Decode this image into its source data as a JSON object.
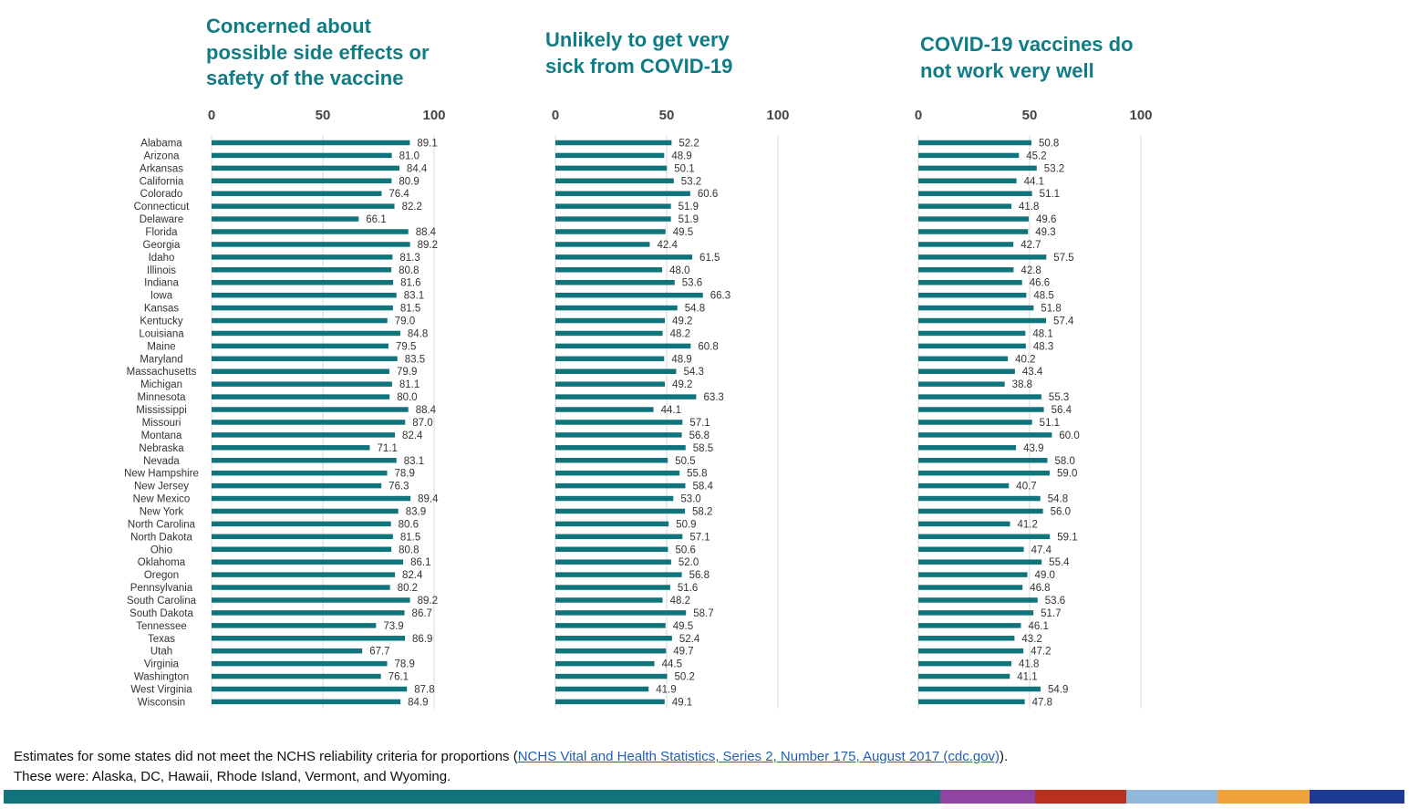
{
  "colors": {
    "title": "#0f7c86",
    "bar": "#10747d",
    "grid": "#d9d9d9",
    "strip": [
      "#10747d",
      "#8e44a0",
      "#b8311f",
      "#8fb8da",
      "#f0a33a",
      "#1d3a96"
    ]
  },
  "chart_data": [
    {
      "type": "bar",
      "orientation": "horizontal",
      "title": "Concerned about\npossible side effects or\nsafety of the vaccine",
      "xlim": [
        0,
        100
      ],
      "ticks": [
        "0",
        "50",
        "100"
      ],
      "categories": [
        "Alabama",
        "Arizona",
        "Arkansas",
        "California",
        "Colorado",
        "Connecticut",
        "Delaware",
        "Florida",
        "Georgia",
        "Idaho",
        "Illinois",
        "Indiana",
        "Iowa",
        "Kansas",
        "Kentucky",
        "Louisiana",
        "Maine",
        "Maryland",
        "Massachusetts",
        "Michigan",
        "Minnesota",
        "Mississippi",
        "Missouri",
        "Montana",
        "Nebraska",
        "Nevada",
        "New Hampshire",
        "New Jersey",
        "New Mexico",
        "New York",
        "North Carolina",
        "North Dakota",
        "Ohio",
        "Oklahoma",
        "Oregon",
        "Pennsylvania",
        "South Carolina",
        "South Dakota",
        "Tennessee",
        "Texas",
        "Utah",
        "Virginia",
        "Washington",
        "West Virginia",
        "Wisconsin"
      ],
      "values": [
        89.1,
        81.0,
        84.4,
        80.9,
        76.4,
        82.2,
        66.1,
        88.4,
        89.2,
        81.3,
        80.8,
        81.6,
        83.1,
        81.5,
        79.0,
        84.8,
        79.5,
        83.5,
        79.9,
        81.1,
        80.0,
        88.4,
        87.0,
        82.4,
        71.1,
        83.1,
        78.9,
        76.3,
        89.4,
        83.9,
        80.6,
        81.5,
        80.8,
        86.1,
        82.4,
        80.2,
        89.2,
        86.7,
        73.9,
        86.9,
        67.7,
        78.9,
        76.1,
        87.8,
        84.9
      ],
      "labels": [
        "89.1",
        "81.0",
        "84.4",
        "80.9",
        "76.4",
        "82.2",
        "66.1",
        "88.4",
        "89.2",
        "81.3",
        "80.8",
        "81.6",
        "83.1",
        "81.5",
        "79.0",
        "84.8",
        "79.5",
        "83.5",
        "79.9",
        "81.1",
        "80.0",
        "88.4",
        "87.0",
        "82.4",
        "71.1",
        "83.1",
        "78.9",
        "76.3",
        "89.4",
        "83.9",
        "80.6",
        "81.5",
        "80.8",
        "86.1",
        "82.4",
        "80.2",
        "89.2",
        "86.7",
        "73.9",
        "86.9",
        "67.7",
        "78.9",
        "76.1",
        "87.8",
        "84.9"
      ]
    },
    {
      "type": "bar",
      "orientation": "horizontal",
      "title": "Unlikely to get very\nsick from COVID-19",
      "xlim": [
        0,
        100
      ],
      "ticks": [
        "0",
        "50",
        "100"
      ],
      "categories": [
        "Alabama",
        "Arizona",
        "Arkansas",
        "California",
        "Colorado",
        "Connecticut",
        "Delaware",
        "Florida",
        "Georgia",
        "Idaho",
        "Illinois",
        "Indiana",
        "Iowa",
        "Kansas",
        "Kentucky",
        "Louisiana",
        "Maine",
        "Maryland",
        "Massachusetts",
        "Michigan",
        "Minnesota",
        "Mississippi",
        "Missouri",
        "Montana",
        "Nebraska",
        "Nevada",
        "New Hampshire",
        "New Jersey",
        "New Mexico",
        "New York",
        "North Carolina",
        "North Dakota",
        "Ohio",
        "Oklahoma",
        "Oregon",
        "Pennsylvania",
        "South Carolina",
        "South Dakota",
        "Tennessee",
        "Texas",
        "Utah",
        "Virginia",
        "Washington",
        "West Virginia",
        "Wisconsin"
      ],
      "values": [
        52.2,
        48.9,
        50.1,
        53.2,
        60.6,
        51.9,
        51.9,
        49.5,
        42.4,
        61.5,
        48.0,
        53.6,
        66.3,
        54.8,
        49.2,
        48.2,
        60.8,
        48.9,
        54.3,
        49.2,
        63.3,
        44.1,
        57.1,
        56.8,
        58.5,
        50.5,
        55.8,
        58.4,
        53.0,
        58.2,
        50.9,
        57.1,
        50.6,
        52.0,
        56.8,
        51.6,
        48.2,
        58.7,
        49.5,
        52.4,
        49.7,
        44.5,
        50.2,
        41.9,
        49.1
      ],
      "labels": [
        "52.2",
        "48.9",
        "50.1",
        "53.2",
        "60.6",
        "51.9",
        "51.9",
        "49.5",
        "42.4",
        "61.5",
        "48.0",
        "53.6",
        "66.3",
        "54.8",
        "49.2",
        "48.2",
        "60.8",
        "48.9",
        "54.3",
        "49.2",
        "63.3",
        "44.1",
        "57.1",
        "56.8",
        "58.5",
        "50.5",
        "55.8",
        "58.4",
        "53.0",
        "58.2",
        "50.9",
        "57.1",
        "50.6",
        "52.0",
        "56.8",
        "51.6",
        "48.2",
        "58.7",
        "49.5",
        "52.4",
        "49.7",
        "44.5",
        "50.2",
        "41.9",
        "49.1"
      ]
    },
    {
      "type": "bar",
      "orientation": "horizontal",
      "title": "COVID-19 vaccines do\nnot work very well",
      "xlim": [
        0,
        100
      ],
      "ticks": [
        "0",
        "50",
        "100"
      ],
      "categories": [
        "Alabama",
        "Arizona",
        "Arkansas",
        "California",
        "Colorado",
        "Connecticut",
        "Delaware",
        "Florida",
        "Georgia",
        "Idaho",
        "Illinois",
        "Indiana",
        "Iowa",
        "Kansas",
        "Kentucky",
        "Louisiana",
        "Maine",
        "Maryland",
        "Massachusetts",
        "Michigan",
        "Minnesota",
        "Mississippi",
        "Missouri",
        "Montana",
        "Nebraska",
        "Nevada",
        "New Hampshire",
        "New Jersey",
        "New Mexico",
        "New York",
        "North Carolina",
        "North Dakota",
        "Ohio",
        "Oklahoma",
        "Oregon",
        "Pennsylvania",
        "South Carolina",
        "South Dakota",
        "Tennessee",
        "Texas",
        "Utah",
        "Virginia",
        "Washington",
        "West Virginia",
        "Wisconsin"
      ],
      "values": [
        50.8,
        45.2,
        53.2,
        44.1,
        51.1,
        41.8,
        49.6,
        49.3,
        42.7,
        57.5,
        42.8,
        46.6,
        48.5,
        51.8,
        57.4,
        48.1,
        48.3,
        40.2,
        43.4,
        38.8,
        55.3,
        56.4,
        51.1,
        60.0,
        43.9,
        58.0,
        59.0,
        40.7,
        54.8,
        56.0,
        41.2,
        59.1,
        47.4,
        55.4,
        49.0,
        46.8,
        53.6,
        51.7,
        46.1,
        43.2,
        47.2,
        41.8,
        41.1,
        54.9,
        47.8
      ],
      "labels": [
        "50.8",
        "45.2",
        "53.2",
        "44.1",
        "51.1",
        "41.8",
        "49.6",
        "49.3",
        "42.7",
        "57.5",
        "42.8",
        "46.6",
        "48.5",
        "51.8",
        "57.4",
        "48.1",
        "48.3",
        "40.2",
        "43.4",
        "38.8",
        "55.3",
        "56.4",
        "51.1",
        "60.0",
        "43.9",
        "58.0",
        "59.0",
        "40.7",
        "54.8",
        "56.0",
        "41.2",
        "59.1",
        "47.4",
        "55.4",
        "49.0",
        "46.8",
        "53.6",
        "51.7",
        "46.1",
        "43.2",
        "47.2",
        "41.8",
        "41.1",
        "54.9",
        "47.8"
      ]
    }
  ],
  "footnote": {
    "line1_prefix": "Estimates for some states did not meet the NCHS reliability criteria for proportions (",
    "link_text": "NCHS Vital and Health Statistics, Series 2, Number 175, August 2017 (cdc.gov)",
    "line1_suffix": ").",
    "line2": "These were: Alaska, DC, Hawaii, Rhode Island, Vermont, and Wyoming."
  }
}
